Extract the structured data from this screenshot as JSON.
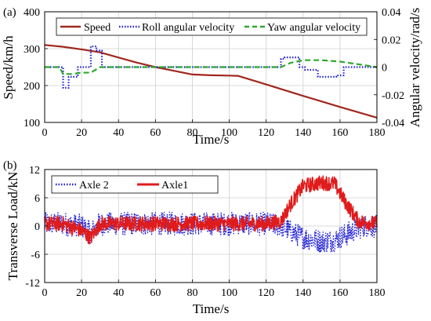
{
  "chart_data": [
    {
      "panel_label": "(a)",
      "type": "line",
      "xlabel": "Time/s",
      "ylabel": "Speed/km/h",
      "y2label": "Angular velocity/rad/s",
      "xlim": [
        0,
        180
      ],
      "ylim": [
        100,
        400
      ],
      "y2lim": [
        -0.04,
        0.04
      ],
      "x_ticks": [
        0,
        20,
        40,
        60,
        80,
        100,
        120,
        140,
        160,
        180
      ],
      "y_ticks": [
        100,
        200,
        300,
        400
      ],
      "y2_ticks": [
        -0.04,
        -0.02,
        0,
        0.02,
        0.04
      ],
      "y2_tick_labels": [
        "-0.04",
        "-0.02",
        "0",
        "0.02",
        "0.04"
      ],
      "grid": true,
      "legend_placement": "top",
      "series": [
        {
          "name": "Speed",
          "axis": "left",
          "color": "#a0281e",
          "style": "solid",
          "x": [
            0,
            10,
            20,
            30,
            40,
            50,
            60,
            70,
            80,
            90,
            100,
            105,
            120,
            140,
            160,
            180
          ],
          "values": [
            310,
            305,
            298,
            290,
            276,
            262,
            250,
            240,
            230,
            228,
            227,
            226,
            203,
            172,
            142,
            113
          ]
        },
        {
          "name": "Roll angular velocity",
          "axis": "right",
          "color": "#1f1fd6",
          "style": "dotted",
          "x": [
            0,
            10,
            10,
            13,
            13,
            18,
            18,
            25,
            25,
            28,
            28,
            31,
            31,
            35,
            35,
            60,
            100,
            128,
            128,
            130,
            130,
            138,
            138,
            141,
            141,
            148,
            148,
            158,
            158,
            162,
            162,
            180
          ],
          "values": [
            0,
            0,
            -0.015,
            -0.015,
            -0.007,
            -0.007,
            0,
            0,
            0.015,
            0.015,
            0.012,
            0.012,
            0,
            0,
            0,
            0,
            0,
            0,
            0.006,
            0.006,
            0.007,
            0.007,
            0,
            0,
            -0.002,
            -0.002,
            -0.007,
            -0.007,
            -0.006,
            -0.006,
            0,
            0
          ]
        },
        {
          "name": "Yaw angular velocity",
          "axis": "right",
          "color": "#2ea82e",
          "style": "dashed",
          "x": [
            0,
            8,
            10,
            15,
            20,
            25,
            30,
            40,
            60,
            80,
            100,
            120,
            128,
            133,
            140,
            150,
            160,
            170,
            180
          ],
          "values": [
            0,
            0,
            -0.005,
            -0.005,
            -0.004,
            -0.004,
            0,
            0,
            0,
            0,
            0,
            0,
            0,
            0.003,
            0.005,
            0.005,
            0.004,
            0.002,
            0
          ]
        }
      ]
    },
    {
      "panel_label": "(b)",
      "type": "line",
      "xlabel": "Time/s",
      "ylabel": "Transverse Load/kN",
      "xlim": [
        0,
        180
      ],
      "ylim": [
        -12,
        12
      ],
      "x_ticks": [
        0,
        20,
        40,
        60,
        80,
        100,
        120,
        140,
        160,
        180
      ],
      "y_ticks": [
        -12,
        -6,
        0,
        6,
        12
      ],
      "grid": true,
      "legend_placement": "top-left",
      "series": [
        {
          "name": "Axle 2",
          "color": "#1f1fd6",
          "style": "dotted",
          "x": [
            0,
            10,
            20,
            25,
            30,
            40,
            60,
            80,
            100,
            120,
            128,
            135,
            140,
            150,
            157,
            165,
            172,
            180
          ],
          "values": [
            0.5,
            0.5,
            0,
            -1.5,
            0.5,
            0.5,
            0.5,
            0.5,
            0.5,
            0.5,
            0,
            -1.5,
            -2.5,
            -3.3,
            -3,
            -1.5,
            0,
            0
          ],
          "noise_amplitude": 2.5
        },
        {
          "name": "Axle1",
          "color": "#e01b1b",
          "style": "solid",
          "x": [
            0,
            10,
            20,
            25,
            30,
            40,
            60,
            80,
            100,
            120,
            128,
            133,
            140,
            150,
            157,
            163,
            170,
            180
          ],
          "values": [
            0.5,
            0.5,
            -1,
            -2.5,
            0.5,
            0.5,
            0.5,
            0.5,
            0.5,
            0.5,
            1,
            4.5,
            8.5,
            9.2,
            9,
            5,
            1,
            0.5
          ],
          "noise_amplitude": 1.6
        }
      ]
    }
  ]
}
